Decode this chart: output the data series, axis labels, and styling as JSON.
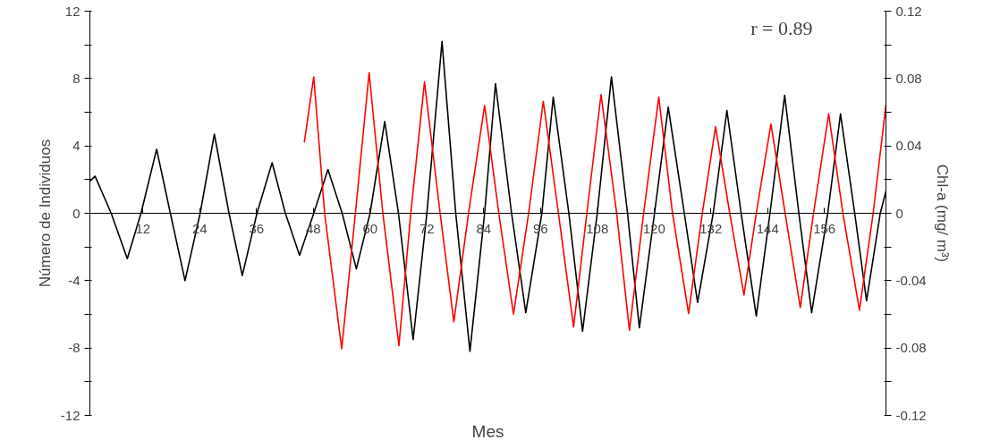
{
  "chart_data": {
    "type": "line",
    "xlabel": "Mes",
    "ylabel": "Número de Individuos",
    "y2label": "Chl-a (mg/ m³)",
    "annotations": [
      "r = 0.89"
    ],
    "xlim": [
      0.8,
      169
    ],
    "xticks": [
      12,
      24,
      36,
      48,
      60,
      72,
      84,
      96,
      108,
      120,
      132,
      144,
      156
    ],
    "ylim": [
      -12,
      12
    ],
    "yticks": [
      -12,
      {
        "value": -10,
        "label": null
      },
      -8,
      {
        "value": -6,
        "label": null
      },
      -4,
      {
        "value": -2,
        "label": null
      },
      0,
      {
        "value": 2,
        "label": null
      },
      4,
      {
        "value": 6,
        "label": null
      },
      8,
      {
        "value": 10,
        "label": null
      },
      12
    ],
    "y2lim": [
      -0.12,
      0.12
    ],
    "y2ticks": [
      -0.12,
      {
        "value": -0.1,
        "label": null
      },
      -0.08,
      {
        "value": -0.06,
        "label": null
      },
      -0.04,
      {
        "value": -0.02,
        "label": null
      },
      0,
      {
        "value": 0.02,
        "label": null
      },
      0.04,
      {
        "value": 0.06,
        "label": null
      },
      0.08,
      {
        "value": 0.1,
        "label": null
      },
      0.12
    ],
    "series": [
      {
        "color": "#000000",
        "x": [
          0.8,
          1.9,
          5.3,
          8.7,
          11.6,
          14.9,
          17.8,
          20.9,
          24.1,
          27.1,
          30.2,
          33.0,
          36.1,
          39.3,
          42.1,
          45.1,
          48.1,
          51.1,
          54.1,
          57.1,
          60.0,
          63.1,
          66.0,
          69.1,
          72.0,
          75.2,
          78.1,
          81.1,
          84.2,
          86.5,
          89.9,
          92.9,
          96.3,
          98.7,
          102.0,
          104.9,
          108.0,
          111.0,
          114.4,
          116.9,
          120.1,
          123.0,
          126.4,
          129.2,
          132.5,
          135.4,
          138.4,
          141.6,
          144.5,
          147.6,
          150.6,
          153.3,
          156.7,
          159.4,
          162.4,
          164.9,
          167.8,
          169.0
        ],
        "values": [
          1.9,
          2.2,
          0,
          -2.7,
          0,
          3.8,
          0,
          -4.0,
          0,
          4.7,
          0,
          -3.7,
          0,
          3.0,
          0,
          -2.5,
          0,
          2.6,
          0,
          -3.3,
          0,
          5.45,
          0,
          -7.5,
          0,
          10.2,
          0,
          -8.2,
          0,
          7.7,
          0,
          -5.9,
          0,
          6.9,
          0,
          -7.0,
          0,
          8.1,
          0,
          -6.8,
          0,
          6.3,
          0,
          -5.3,
          0,
          6.1,
          0,
          -6.1,
          0,
          7.0,
          0,
          -5.9,
          0,
          5.9,
          0,
          -5.2,
          0,
          1.3
        ]
      },
      {
        "color": "#ff0000",
        "axis": "y2",
        "x": [
          46.1,
          48.1,
          50.4,
          54.0,
          56.9,
          59.8,
          62.7,
          66.1,
          68.6,
          71.5,
          74.8,
          77.7,
          80.8,
          84.2,
          87.2,
          90.3,
          93.5,
          96.6,
          99.8,
          103.0,
          105.8,
          108.8,
          112.1,
          114.8,
          117.8,
          121.0,
          123.9,
          127.3,
          130.2,
          133.0,
          136.0,
          139.0,
          141.6,
          144.7,
          147.7,
          150.9,
          153.7,
          156.9,
          159.9,
          163.4,
          166.3,
          169.0
        ],
        "values": [
          0.042,
          0.081,
          0,
          -0.0805,
          0,
          0.0835,
          0,
          -0.0785,
          0,
          0.078,
          0,
          -0.0645,
          0,
          0.064,
          0,
          -0.06,
          0,
          0.0665,
          0,
          -0.0675,
          0,
          0.0705,
          0,
          -0.0695,
          0,
          0.069,
          0,
          -0.0595,
          0,
          0.0515,
          0,
          -0.0485,
          0,
          0.053,
          0,
          -0.056,
          0,
          0.059,
          0,
          -0.0575,
          0,
          0.0645
        ]
      }
    ]
  }
}
